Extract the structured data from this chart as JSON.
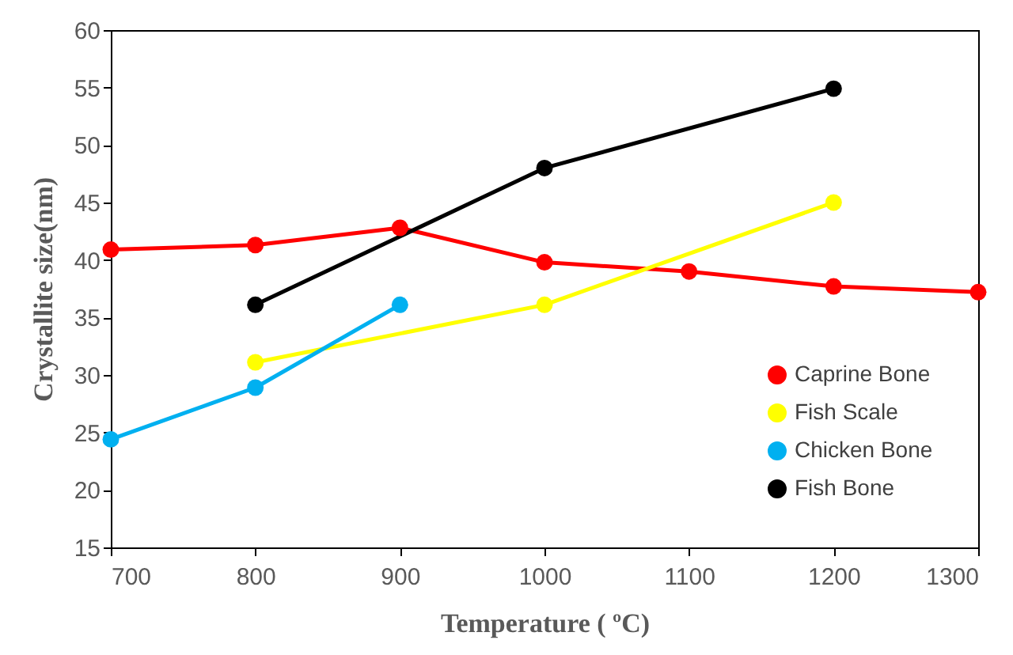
{
  "chart_data": {
    "type": "line",
    "xlabel": "Temperature ( ºC)",
    "ylabel": "Crystallite size(nm)",
    "xlim": [
      700,
      1300
    ],
    "xticks": [
      700,
      800,
      900,
      1000,
      1100,
      1200,
      1300
    ],
    "ylim": [
      15,
      60
    ],
    "yticks": [
      15,
      20,
      25,
      30,
      35,
      40,
      45,
      50,
      55,
      60
    ],
    "grid": false,
    "legend": "bottom right",
    "marker": "circle",
    "line_style": "solid",
    "series": [
      {
        "name": "Caprine Bone",
        "color": "#ff0000",
        "x": [
          700,
          800,
          900,
          1000,
          1100,
          1200,
          1300
        ],
        "values": [
          40.9,
          41.3,
          42.8,
          39.8,
          39.0,
          37.7,
          37.2
        ]
      },
      {
        "name": "Fish Scale",
        "color": "#ffff00",
        "x": [
          800,
          1000,
          1200
        ],
        "values": [
          31.1,
          36.1,
          45.0
        ]
      },
      {
        "name": "Chicken Bone",
        "color": "#00b0f0",
        "x": [
          700,
          800,
          900
        ],
        "values": [
          24.4,
          28.9,
          36.1
        ]
      },
      {
        "name": "Fish Bone",
        "color": "#000000",
        "x": [
          800,
          1000,
          1200
        ],
        "values": [
          36.1,
          48.0,
          54.9
        ]
      }
    ]
  }
}
